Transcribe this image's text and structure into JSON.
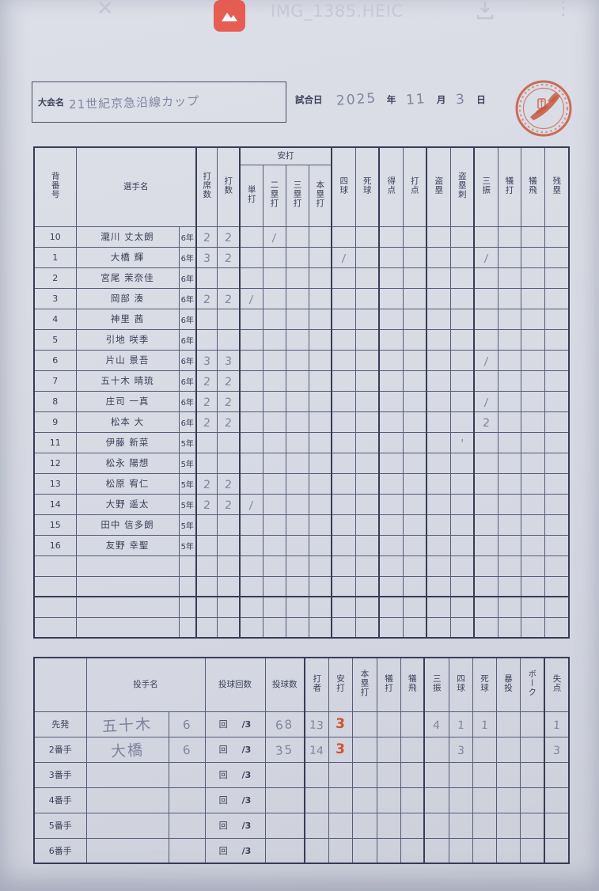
{
  "viewer": {
    "filename": "IMG_1385.HEIC",
    "close_icon": "✕",
    "more_icon": "⋮"
  },
  "header": {
    "tournament_label": "大会名",
    "tournament_name": "21世紀京急沿線カップ",
    "date_label": "試合日",
    "year": "2025",
    "year_label": "年",
    "month": "11",
    "month_label": "月",
    "day": "3",
    "day_label": "日"
  },
  "batting": {
    "headers": {
      "number": "背番号",
      "player": "選手名",
      "pa": "打席数",
      "ab": "打数",
      "hits_group": "安打",
      "h1": "単打",
      "h2": "二塁打",
      "h3": "三塁打",
      "hr": "本塁打",
      "bb": "四球",
      "hbp": "死球",
      "r": "得点",
      "rbi": "打点",
      "sb": "盗塁",
      "cs": "盗塁刺",
      "so": "三振",
      "sh": "犠打",
      "sf": "犠飛",
      "lob": "残塁"
    },
    "rows": [
      {
        "no": "10",
        "name": "瀧川 丈太朗",
        "grade": "6年",
        "pa": "2",
        "ab": "2",
        "h2": "/"
      },
      {
        "no": "1",
        "name": "大橋 輝",
        "grade": "6年",
        "pa": "3",
        "ab": "2",
        "bb": "/",
        "so": "/"
      },
      {
        "no": "2",
        "name": "宮尾 茉奈佳",
        "grade": "6年"
      },
      {
        "no": "3",
        "name": "岡部 湊",
        "grade": "6年",
        "pa": "2",
        "ab": "2",
        "h1": "/"
      },
      {
        "no": "4",
        "name": "神里 茜",
        "grade": "6年"
      },
      {
        "no": "5",
        "name": "引地 咲季",
        "grade": "6年"
      },
      {
        "no": "6",
        "name": "片山 景吾",
        "grade": "6年",
        "pa": "3",
        "ab": "3",
        "so": "/"
      },
      {
        "no": "7",
        "name": "五十木 晴琉",
        "grade": "6年",
        "pa": "2",
        "ab": "2"
      },
      {
        "no": "8",
        "name": "庄司 一真",
        "grade": "6年",
        "pa": "2",
        "ab": "2",
        "so": "/"
      },
      {
        "no": "9",
        "name": "松本 大",
        "grade": "6年",
        "pa": "2",
        "ab": "2",
        "so": "2"
      },
      {
        "no": "11",
        "name": "伊藤 新菜",
        "grade": "5年",
        "cs": "'"
      },
      {
        "no": "12",
        "name": "松永 陽想",
        "grade": "5年"
      },
      {
        "no": "13",
        "name": "松原 宥仁",
        "grade": "5年",
        "pa": "2",
        "ab": "2"
      },
      {
        "no": "14",
        "name": "大野 遥太",
        "grade": "5年",
        "pa": "2",
        "ab": "2",
        "h1": "/"
      },
      {
        "no": "15",
        "name": "田中 信多朗",
        "grade": "5年"
      },
      {
        "no": "16",
        "name": "友野 幸聖",
        "grade": "5年"
      },
      {},
      {},
      {},
      {}
    ]
  },
  "pitching": {
    "headers": {
      "name": "投手名",
      "innings": "投球回数",
      "inning_unit": "回",
      "thirds": "/3",
      "pitches": "投球数",
      "batters": "打者",
      "hits": "安打",
      "hr": "本塁打",
      "sh": "犠打",
      "sf": "犠飛",
      "so": "三振",
      "bb": "四球",
      "hbp": "死球",
      "wp": "暴投",
      "balk": "ボーク",
      "runs": "失点"
    },
    "rows": [
      {
        "label": "先発",
        "name": "五十木",
        "innings": "6",
        "pitches": "68",
        "batters": "13",
        "hits": "3",
        "so": "4",
        "bb": "1",
        "hbp": "1",
        "runs": "1"
      },
      {
        "label": "2番手",
        "name": "大橋",
        "innings": "6",
        "pitches": "35",
        "batters": "14",
        "hits": "3",
        "bb": "3",
        "runs": "3"
      },
      {
        "label": "3番手"
      },
      {
        "label": "4番手"
      },
      {
        "label": "5番手"
      },
      {
        "label": "6番手"
      }
    ]
  },
  "colors": {
    "stamp_red": "#c64a2a",
    "handwriting_red": "#d1512e",
    "handwriting_pencil": "#82869f",
    "print_ink": "#3c3f58"
  }
}
